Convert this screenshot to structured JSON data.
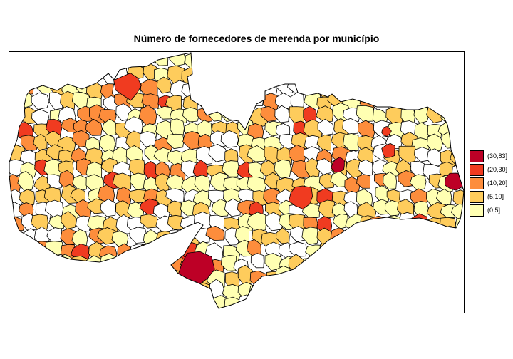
{
  "title": "Número de fornecedores de merenda por município",
  "legend": {
    "items": [
      {
        "label": "(30,83]",
        "color": "#bd0026"
      },
      {
        "label": "(20,30]",
        "color": "#f03b20"
      },
      {
        "label": "(10,20]",
        "color": "#fd8d3c"
      },
      {
        "label": "(5,10]",
        "color": "#fecc5c"
      },
      {
        "label": "(0,5]",
        "color": "#ffffb2"
      }
    ]
  },
  "map": {
    "no_data_color": "#ffffff",
    "border_color": "#000000"
  }
}
